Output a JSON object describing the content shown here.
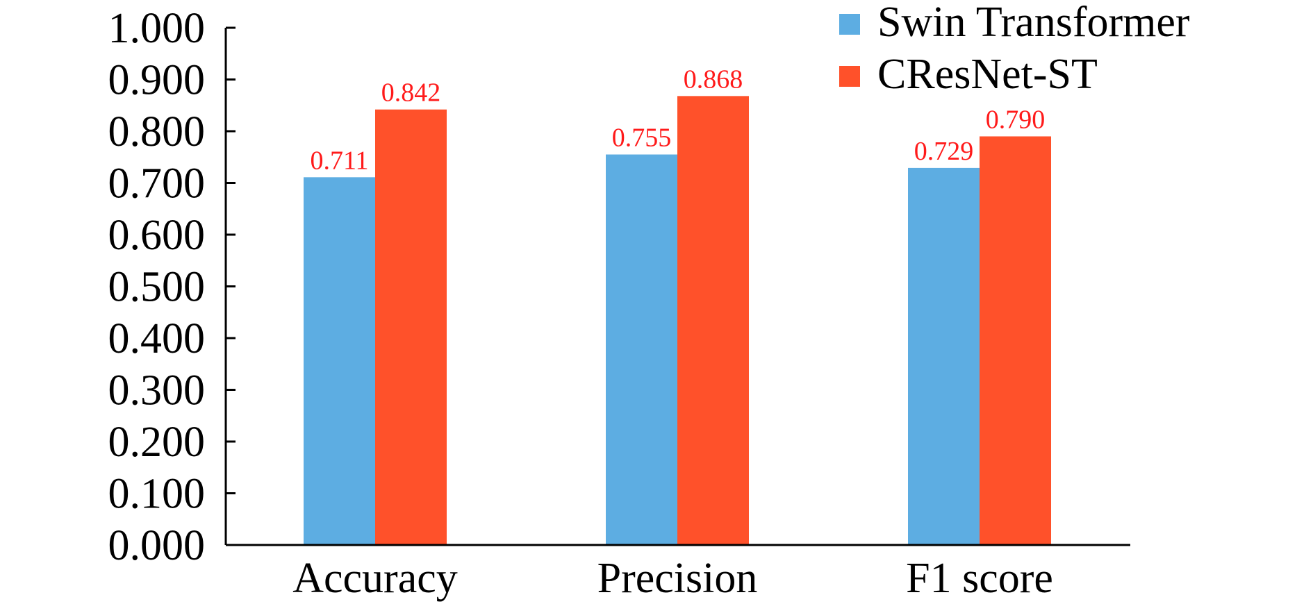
{
  "chart_data": {
    "type": "bar",
    "categories": [
      "Accuracy",
      "Precision",
      "F1 score"
    ],
    "series": [
      {
        "name": "Swin Transformer",
        "values": [
          0.711,
          0.755,
          0.729
        ],
        "labels": [
          "0.711",
          "0.755",
          "0.729"
        ],
        "color": "#5dade2"
      },
      {
        "name": "CResNet-ST",
        "values": [
          0.842,
          0.868,
          0.79
        ],
        "labels": [
          "0.842",
          "0.868",
          "0.790"
        ],
        "color": "#ff512a"
      }
    ],
    "ylim": [
      0,
      1
    ],
    "yticks": [
      0,
      0.1,
      0.2,
      0.3,
      0.4,
      0.5,
      0.6,
      0.7,
      0.8,
      0.9,
      1.0
    ],
    "ytick_labels": [
      "0.000",
      "0.100",
      "0.200",
      "0.300",
      "0.400",
      "0.500",
      "0.600",
      "0.700",
      "0.800",
      "0.900",
      "1.000"
    ],
    "grid": false,
    "legend_position": "top-right",
    "data_label_color": "#ff1a1a"
  }
}
